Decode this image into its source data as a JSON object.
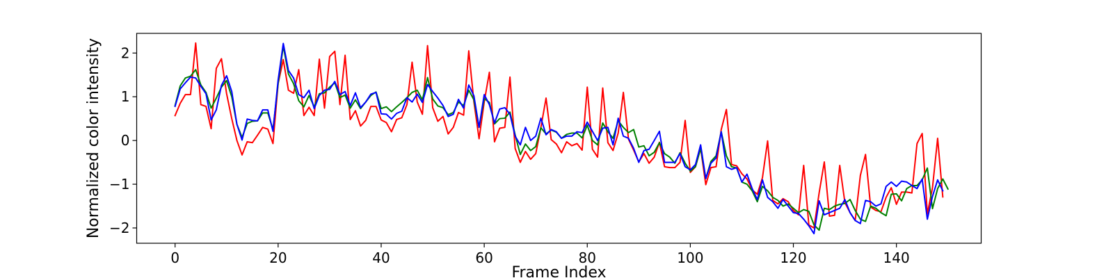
{
  "chart_data": {
    "type": "line",
    "title": "",
    "xlabel": "Frame Index",
    "ylabel": "Normalized color intensity",
    "xlim": [
      -7.45,
      156.45
    ],
    "ylim": [
      -2.35,
      2.45
    ],
    "xticks": [
      0,
      20,
      40,
      60,
      80,
      100,
      120,
      140
    ],
    "yticks": [
      -2,
      -1,
      0,
      1,
      2
    ],
    "grid": false,
    "legend": "none",
    "series": [
      {
        "color": "#ff0000",
        "values": [
          0.57,
          0.85,
          1.05,
          1.05,
          2.23,
          0.82,
          0.78,
          0.27,
          1.65,
          1.87,
          1.07,
          0.5,
          0.0,
          -0.33,
          -0.03,
          -0.05,
          0.12,
          0.3,
          0.26,
          -0.07,
          1.3,
          1.85,
          1.15,
          1.08,
          1.62,
          0.57,
          0.76,
          0.57,
          1.86,
          0.74,
          1.92,
          2.04,
          0.82,
          1.95,
          0.48,
          0.68,
          0.33,
          0.46,
          0.78,
          0.78,
          0.47,
          0.41,
          0.2,
          0.48,
          0.52,
          0.82,
          1.79,
          0.88,
          0.6,
          2.17,
          0.75,
          0.44,
          0.55,
          0.15,
          0.3,
          0.64,
          0.58,
          2.05,
          0.88,
          0.04,
          0.88,
          1.56,
          -0.03,
          0.28,
          0.3,
          1.45,
          -0.18,
          -0.5,
          -0.25,
          -0.43,
          -0.3,
          0.3,
          0.97,
          0.02,
          -0.08,
          -0.28,
          -0.03,
          -0.12,
          -0.07,
          -0.22,
          1.22,
          -0.2,
          -0.38,
          1.2,
          -0.05,
          -0.23,
          0.17,
          1.1,
          0.03,
          -0.22,
          -0.49,
          -0.3,
          -0.52,
          -0.38,
          -0.04,
          -0.6,
          -0.62,
          -0.62,
          -0.5,
          0.46,
          -0.73,
          -0.6,
          -0.18,
          -1.01,
          -0.62,
          -0.6,
          0.25,
          0.71,
          -0.55,
          -0.58,
          -0.76,
          -0.88,
          -1.13,
          -1.23,
          -0.85,
          -0.01,
          -1.37,
          -1.45,
          -1.33,
          -1.4,
          -1.6,
          -1.7,
          -0.57,
          -1.93,
          -2.0,
          -1.2,
          -0.49,
          -1.73,
          -1.71,
          -0.57,
          -1.42,
          -1.65,
          -1.83,
          -0.8,
          -0.32,
          -1.52,
          -1.6,
          -1.63,
          -1.3,
          -1.08,
          -1.46,
          -1.18,
          -1.18,
          -1.2,
          -0.07,
          0.16,
          -1.68,
          -1.08,
          0.05,
          -1.29
        ]
      },
      {
        "color": "#008000",
        "values": [
          0.8,
          1.25,
          1.43,
          1.47,
          1.62,
          1.27,
          1.1,
          0.74,
          0.97,
          1.22,
          1.37,
          1.0,
          0.37,
          0.07,
          0.39,
          0.44,
          0.45,
          0.63,
          0.63,
          0.25,
          1.3,
          2.16,
          1.52,
          1.3,
          0.91,
          0.77,
          1.03,
          0.77,
          1.07,
          1.09,
          1.22,
          1.32,
          0.98,
          1.04,
          0.74,
          0.93,
          0.73,
          0.88,
          1.03,
          1.11,
          0.73,
          0.77,
          0.66,
          0.77,
          0.87,
          0.98,
          1.1,
          1.15,
          0.93,
          1.44,
          0.95,
          0.79,
          0.75,
          0.59,
          0.64,
          0.88,
          0.8,
          1.15,
          0.93,
          0.3,
          0.96,
          0.87,
          0.38,
          0.5,
          0.51,
          0.65,
          0.13,
          -0.32,
          -0.08,
          -0.23,
          -0.14,
          0.29,
          0.15,
          0.24,
          0.19,
          0.05,
          0.14,
          0.17,
          0.17,
          0.06,
          0.35,
          0.0,
          -0.1,
          0.4,
          0.2,
          0.05,
          0.45,
          0.3,
          0.18,
          0.25,
          -0.15,
          -0.12,
          -0.35,
          -0.27,
          -0.05,
          -0.3,
          -0.38,
          -0.52,
          -0.28,
          -0.52,
          -0.7,
          -0.6,
          -0.18,
          -0.87,
          -0.48,
          -0.35,
          0.2,
          -0.35,
          -0.6,
          -0.63,
          -0.95,
          -1.0,
          -1.15,
          -1.4,
          -1.05,
          -1.15,
          -1.3,
          -1.37,
          -1.5,
          -1.45,
          -1.55,
          -1.65,
          -1.58,
          -1.62,
          -1.93,
          -2.05,
          -1.55,
          -1.58,
          -1.5,
          -1.46,
          -1.44,
          -1.35,
          -1.6,
          -1.8,
          -1.85,
          -1.5,
          -1.55,
          -1.65,
          -1.72,
          -1.23,
          -1.22,
          -1.38,
          -1.1,
          -1.03,
          -1.03,
          -0.9,
          -0.63,
          -1.56,
          -1.1,
          -0.88,
          -1.11
        ]
      },
      {
        "color": "#0000ff",
        "values": [
          0.78,
          1.18,
          1.32,
          1.45,
          1.43,
          1.24,
          1.07,
          0.47,
          0.7,
          1.26,
          1.48,
          1.12,
          0.37,
          0.01,
          0.49,
          0.46,
          0.45,
          0.7,
          0.7,
          0.21,
          1.38,
          2.22,
          1.6,
          1.43,
          1.05,
          0.98,
          1.15,
          0.73,
          1.03,
          1.15,
          1.17,
          1.35,
          1.05,
          1.12,
          0.8,
          1.09,
          0.75,
          0.88,
          1.06,
          1.1,
          0.61,
          0.6,
          0.49,
          0.62,
          0.67,
          0.98,
          0.88,
          1.06,
          0.87,
          1.28,
          1.12,
          0.97,
          0.8,
          0.55,
          0.6,
          0.94,
          0.74,
          1.27,
          1.02,
          0.3,
          1.05,
          0.82,
          0.4,
          0.72,
          0.75,
          0.6,
          0.1,
          -0.1,
          0.3,
          0.0,
          0.1,
          0.51,
          0.13,
          0.25,
          0.2,
          0.05,
          0.1,
          0.1,
          0.2,
          0.18,
          0.42,
          0.21,
          0.0,
          0.28,
          0.3,
          -0.1,
          0.51,
          0.1,
          0.05,
          -0.18,
          -0.5,
          -0.23,
          -0.2,
          0.0,
          0.21,
          -0.5,
          -0.5,
          -0.5,
          -0.3,
          -0.6,
          -0.67,
          -0.55,
          -0.1,
          -0.87,
          -0.52,
          -0.4,
          0.2,
          -0.6,
          -0.66,
          -0.62,
          -0.95,
          -0.77,
          -1.1,
          -1.35,
          -0.9,
          -1.3,
          -1.4,
          -1.55,
          -1.35,
          -1.5,
          -1.65,
          -1.67,
          -1.8,
          -1.95,
          -2.13,
          -1.38,
          -1.7,
          -1.65,
          -1.6,
          -1.55,
          -1.35,
          -1.65,
          -1.83,
          -1.9,
          -1.37,
          -1.4,
          -1.5,
          -1.45,
          -1.05,
          -0.95,
          -1.05,
          -0.93,
          -0.95,
          -1.03,
          -1.1,
          -0.88,
          -1.8,
          -1.28,
          -0.9,
          -1.15
        ]
      }
    ]
  }
}
